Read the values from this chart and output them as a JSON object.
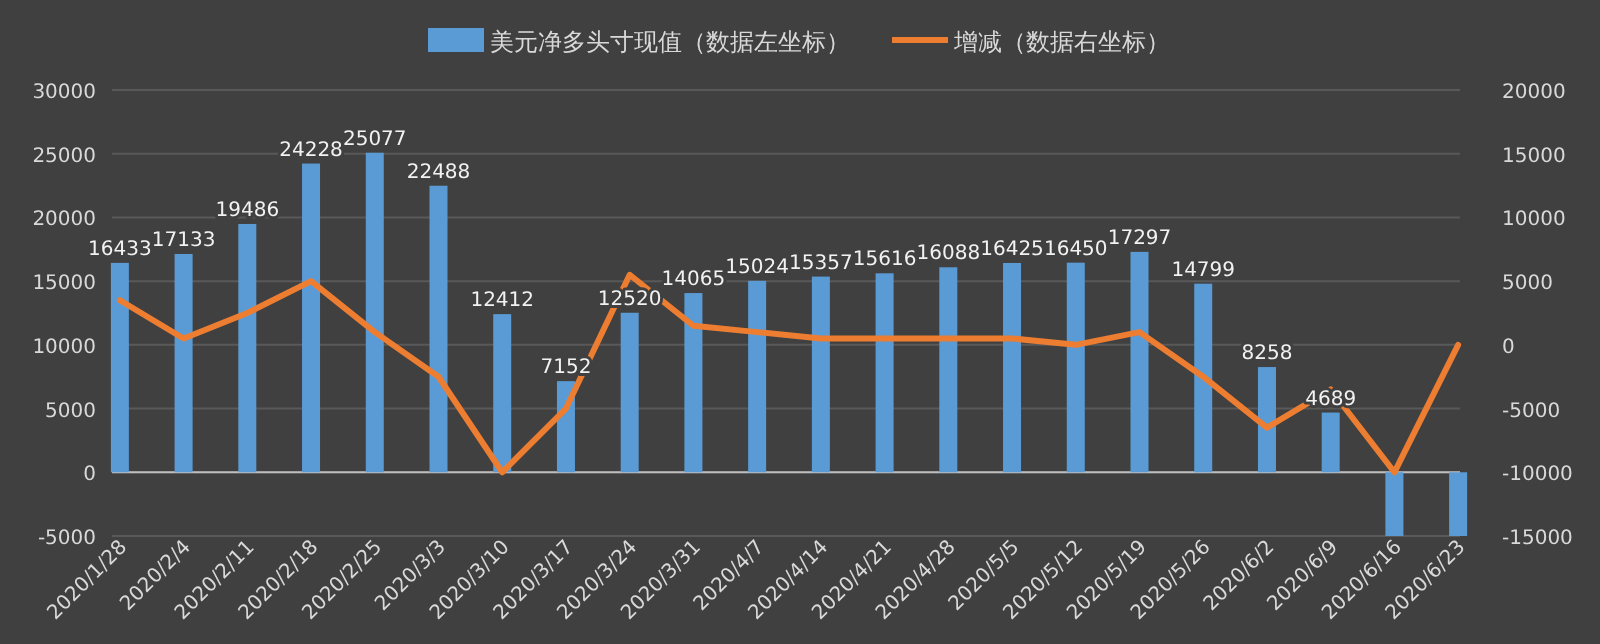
{
  "chart_data": {
    "type": "bar",
    "categories": [
      "2020/1/28",
      "2020/2/4",
      "2020/2/11",
      "2020/2/18",
      "2020/2/25",
      "2020/3/3",
      "2020/3/10",
      "2020/3/17",
      "2020/3/24",
      "2020/3/31",
      "2020/4/7",
      "2020/4/14",
      "2020/4/21",
      "2020/4/28",
      "2020/5/5",
      "2020/5/12",
      "2020/5/19",
      "2020/5/26",
      "2020/6/2",
      "2020/6/9",
      "2020/6/16",
      "2020/6/23"
    ],
    "series": [
      {
        "name": "美元净多头寸现值（数据左坐标）",
        "color": "#5b9bd5",
        "values": [
          16433,
          17133,
          19486,
          24228,
          25077,
          22488,
          12412,
          7152,
          12520,
          14065,
          15024,
          15357,
          15616,
          16088,
          16425,
          16450,
          17297,
          14799,
          8258,
          4689,
          -5000,
          -5000
        ],
        "value_labels": [
          "16433",
          "17133",
          "19486",
          "24228",
          "25077",
          "22488",
          "12412",
          "7152",
          "12520",
          "14065",
          "15024",
          "15357",
          "15616",
          "16088",
          "16425",
          "16450",
          "17297",
          "14799",
          "8258",
          "4689",
          null,
          null
        ]
      },
      {
        "name": "增减（数据右坐标）",
        "type": "line",
        "axis": "y2",
        "color": "#ed7d31",
        "values": [
          3500,
          500,
          2500,
          5000,
          1000,
          -2500,
          -10000,
          -5000,
          5500,
          1500,
          1000,
          500,
          500,
          500,
          500,
          0,
          1000,
          -2500,
          -6500,
          -3500,
          -10000,
          0
        ]
      }
    ],
    "ylim": [
      -5000,
      30000
    ],
    "yticks": [
      -5000,
      0,
      5000,
      10000,
      15000,
      20000,
      25000,
      30000
    ],
    "y2lim": [
      -15000,
      20000
    ],
    "y2ticks": [
      -15000,
      -10000,
      -5000,
      0,
      5000,
      10000,
      15000,
      20000
    ],
    "grid": "y",
    "legend": "top",
    "marker": "none",
    "line_style": "solid"
  }
}
